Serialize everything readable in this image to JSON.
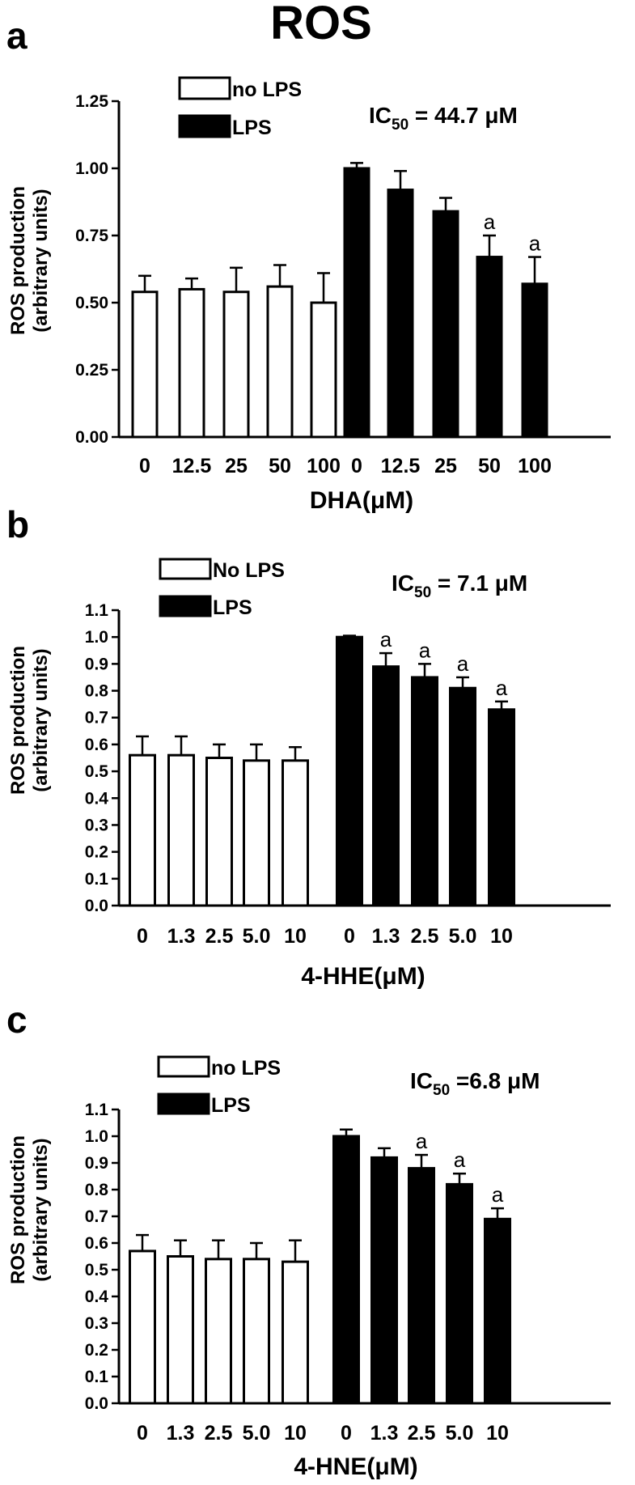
{
  "figure_title": "ROS",
  "colors": {
    "no_lps": "#ffffff",
    "lps": "#000000",
    "stroke": "#000000"
  },
  "panels": [
    {
      "letter": "a",
      "ylabel_line1": "ROS production",
      "ylabel_line2": "(arbitrary units)",
      "xlabel": "DHA(μM)",
      "ic50_prefix": "IC",
      "ic50_sub": "50",
      "ic50_value": " = 44.7 μM",
      "legend": [
        {
          "label": "no LPS"
        },
        {
          "label": "LPS"
        }
      ]
    },
    {
      "letter": "b",
      "ylabel_line1": "ROS production",
      "ylabel_line2": "(arbitrary units)",
      "xlabel": "4-HHE(μM)",
      "ic50_prefix": "IC",
      "ic50_sub": "50",
      "ic50_value": " = 7.1 μM",
      "legend": [
        {
          "label": "No LPS"
        },
        {
          "label": "LPS"
        }
      ]
    },
    {
      "letter": "c",
      "ylabel_line1": "ROS production",
      "ylabel_line2": "(arbitrary units)",
      "xlabel": "4-HNE(μM)",
      "ic50_prefix": "IC",
      "ic50_sub": "50",
      "ic50_value": " =6.8 μM",
      "legend": [
        {
          "label": "no LPS"
        },
        {
          "label": "LPS"
        }
      ]
    }
  ],
  "chart_data": [
    {
      "type": "bar",
      "title": "ROS",
      "xlabel": "DHA(μM)",
      "ylabel": "ROS production (arbitrary units)",
      "ylim": [
        0,
        1.25
      ],
      "yticks": [
        "0.00",
        "0.25",
        "0.50",
        "0.75",
        "1.00",
        "1.25"
      ],
      "legend_position": "top-left",
      "series": [
        {
          "name": "no LPS",
          "categories": [
            "0",
            "12.5",
            "25",
            "50",
            "100"
          ],
          "values": [
            0.54,
            0.55,
            0.54,
            0.56,
            0.5
          ],
          "errors": [
            0.06,
            0.04,
            0.09,
            0.08,
            0.11
          ],
          "annotations": [
            "",
            "",
            "",
            "",
            ""
          ]
        },
        {
          "name": "LPS",
          "categories": [
            "0",
            "12.5",
            "25",
            "50",
            "100"
          ],
          "values": [
            1.0,
            0.92,
            0.84,
            0.67,
            0.57
          ],
          "errors": [
            0.02,
            0.07,
            0.05,
            0.08,
            0.1
          ],
          "annotations": [
            "",
            "",
            "",
            "a",
            "a"
          ]
        }
      ]
    },
    {
      "type": "bar",
      "xlabel": "4-HHE(μM)",
      "ylabel": "ROS production (arbitrary units)",
      "ylim": [
        0,
        1.1
      ],
      "yticks": [
        "0.0",
        "0.1",
        "0.2",
        "0.3",
        "0.4",
        "0.5",
        "0.6",
        "0.7",
        "0.8",
        "0.9",
        "1.0",
        "1.1"
      ],
      "legend_position": "top-left",
      "series": [
        {
          "name": "No LPS",
          "categories": [
            "0",
            "1.3",
            "2.5",
            "5.0",
            "10"
          ],
          "values": [
            0.56,
            0.56,
            0.55,
            0.54,
            0.54
          ],
          "errors": [
            0.07,
            0.07,
            0.05,
            0.06,
            0.05
          ],
          "annotations": [
            "",
            "",
            "",
            "",
            ""
          ]
        },
        {
          "name": "LPS",
          "categories": [
            "0",
            "1.3",
            "2.5",
            "5.0",
            "10"
          ],
          "values": [
            1.0,
            0.89,
            0.85,
            0.81,
            0.73
          ],
          "errors": [
            0.005,
            0.05,
            0.05,
            0.04,
            0.03
          ],
          "annotations": [
            "",
            "a",
            "a",
            "a",
            "a"
          ]
        }
      ]
    },
    {
      "type": "bar",
      "xlabel": "4-HNE(μM)",
      "ylabel": "ROS production (arbitrary units)",
      "ylim": [
        0,
        1.1
      ],
      "yticks": [
        "0.0",
        "0.1",
        "0.2",
        "0.3",
        "0.4",
        "0.5",
        "0.6",
        "0.7",
        "0.8",
        "0.9",
        "1.0",
        "1.1"
      ],
      "legend_position": "top-left",
      "series": [
        {
          "name": "no LPS",
          "categories": [
            "0",
            "1.3",
            "2.5",
            "5.0",
            "10"
          ],
          "values": [
            0.57,
            0.55,
            0.54,
            0.54,
            0.53
          ],
          "errors": [
            0.06,
            0.06,
            0.07,
            0.06,
            0.08
          ],
          "annotations": [
            "",
            "",
            "",
            "",
            ""
          ]
        },
        {
          "name": "LPS",
          "categories": [
            "0",
            "1.3",
            "2.5",
            "5.0",
            "10"
          ],
          "values": [
            1.0,
            0.92,
            0.88,
            0.82,
            0.69
          ],
          "errors": [
            0.025,
            0.035,
            0.05,
            0.04,
            0.04
          ],
          "annotations": [
            "",
            "",
            "a",
            "a",
            "a"
          ]
        }
      ]
    }
  ]
}
